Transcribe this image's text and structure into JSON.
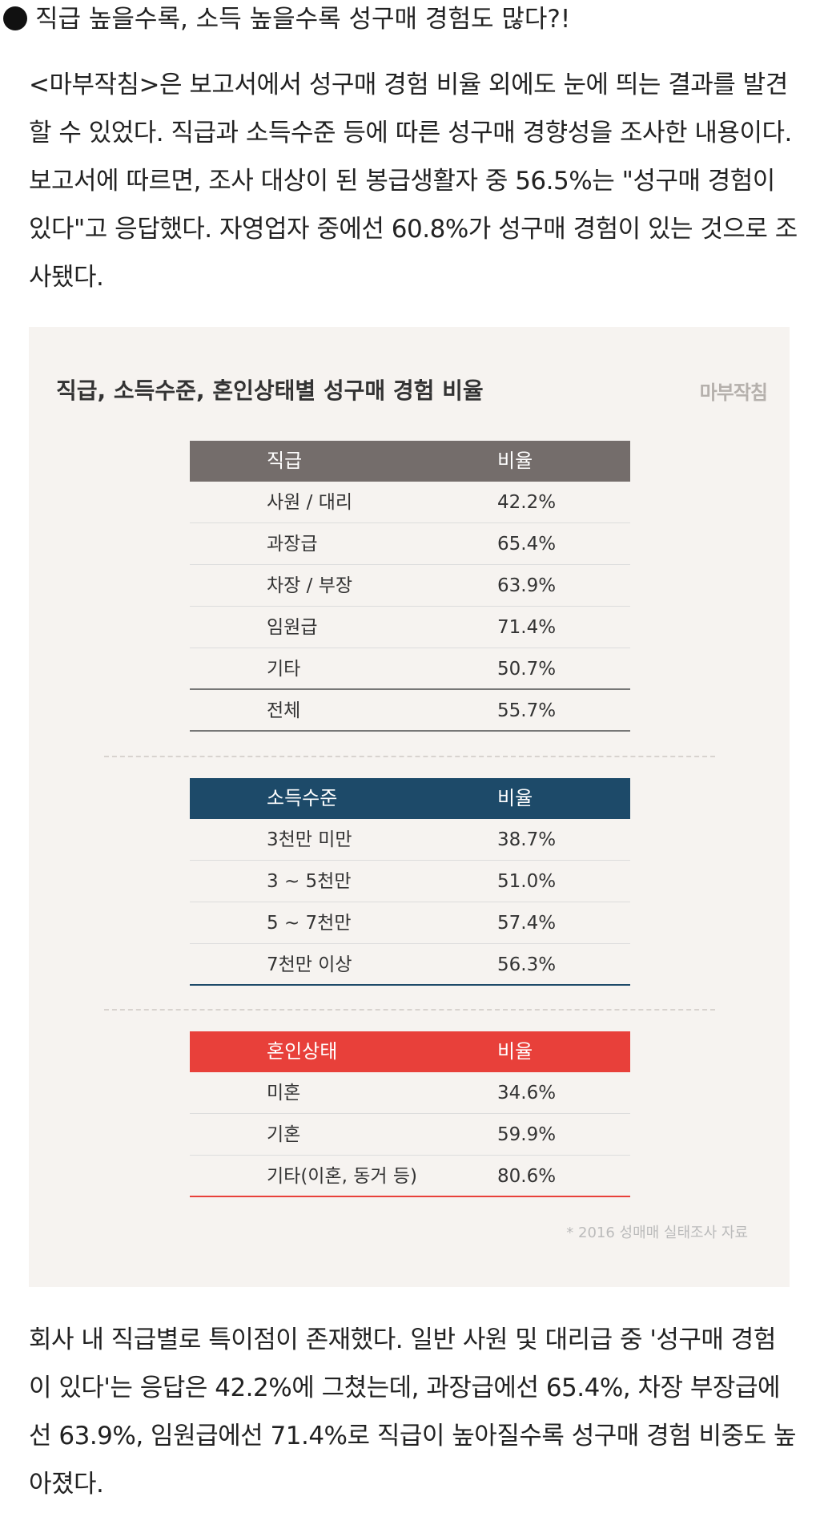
{
  "heading": "직급 높을수록, 소득 높을수록 성구매 경험도 많다?!",
  "intro": "<마부작침>은 보고서에서 성구매 경험 비율 외에도 눈에 띄는 결과를 발견할 수 있었다. 직급과 소득수준 등에 따른 성구매 경향성을 조사한 내용이다. 보고서에 따르면, 조사 대상이 된 봉급생활자 중 56.5%는 \"성구매 경험이 있다\"고 응답했다. 자영업자 중에선 60.8%가 성구매 경험이 있는 것으로 조사됐다.",
  "infographic": {
    "title": "직급, 소득수준, 혼인상태별 성구매 경험 비율",
    "logo": "마부작침",
    "tables": [
      {
        "color": "#746d6b",
        "header": [
          "직급",
          "비율"
        ],
        "rows": [
          [
            "사원 / 대리",
            "42.2%"
          ],
          [
            "과장급",
            "65.4%"
          ],
          [
            "차장 / 부장",
            "63.9%"
          ],
          [
            "임원급",
            "71.4%"
          ],
          [
            "기타",
            "50.7%"
          ]
        ],
        "total": [
          "전체",
          "55.7%"
        ]
      },
      {
        "color": "#1d4a69",
        "header": [
          "소득수준",
          "비율"
        ],
        "rows": [
          [
            "3천만 미만",
            "38.7%"
          ],
          [
            "3 ~ 5천만",
            "51.0%"
          ],
          [
            "5 ~ 7천만",
            "57.4%"
          ],
          [
            "7천만 이상",
            "56.3%"
          ]
        ]
      },
      {
        "color": "#e8403a",
        "header": [
          "혼인상태",
          "비율"
        ],
        "rows": [
          [
            "미혼",
            "34.6%"
          ],
          [
            "기혼",
            "59.9%"
          ],
          [
            "기타(이혼, 동거 등)",
            "80.6%"
          ]
        ]
      }
    ],
    "source": "* 2016 성매매 실태조사 자료"
  },
  "body": "회사 내 직급별로 특이점이 존재했다. 일반 사원 및 대리급 중 '성구매 경험이 있다'는 응답은 42.2%에 그쳤는데, 과장급에선 65.4%, 차장 부장급에선 63.9%, 임원급에선 71.4%로 직급이 높아질수록 성구매 경험 비중도 높아졌다."
}
